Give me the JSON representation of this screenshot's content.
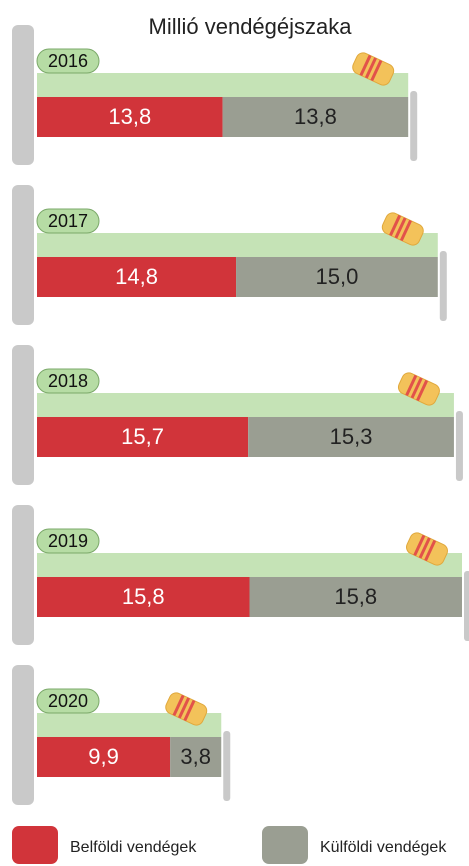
{
  "chart_data": {
    "type": "bar",
    "title": "Millió vendégéjszaka",
    "categories": [
      "2016",
      "2017",
      "2018",
      "2019",
      "2020"
    ],
    "series": [
      {
        "name": "Belföldi vendégek",
        "color": "#d1343a",
        "values": [
          13.8,
          14.8,
          15.7,
          15.8,
          9.9
        ],
        "value_labels": [
          "13,8",
          "14,8",
          "15,7",
          "15,8",
          "9,9"
        ]
      },
      {
        "name": "Külföldi vendégek",
        "color": "#9a9e92",
        "values": [
          13.8,
          15.0,
          15.3,
          15.8,
          3.8
        ],
        "value_labels": [
          "13,8",
          "15,0",
          "15,3",
          "15,8",
          "3,8"
        ]
      }
    ],
    "legend": "bottom"
  }
}
